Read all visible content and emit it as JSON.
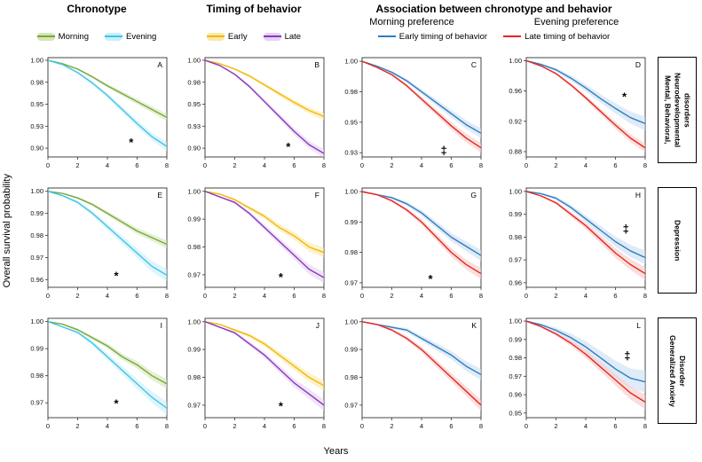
{
  "figure": {
    "y_axis_label": "Overall survival probability",
    "x_axis_label": "Years"
  },
  "headers": {
    "chronotype": "Chronotype",
    "timing": "Timing of behavior",
    "association": "Association between chronotype  and behavior",
    "morning_pref": "Morning preference",
    "evening_pref": "Evening preference"
  },
  "legends": {
    "chronotype": [
      {
        "label": "Morning",
        "color": "#78a73e",
        "fill": "#d4e6b5"
      },
      {
        "label": "Evening",
        "color": "#3cc6e8",
        "fill": "#c9eef8"
      }
    ],
    "timing": [
      {
        "label": "Early",
        "color": "#f2b705",
        "fill": "#fbe9a8"
      },
      {
        "label": "Late",
        "color": "#8a36c1",
        "fill": "#e4d2f2"
      }
    ],
    "association": [
      {
        "label": "Early timing of behavior",
        "color": "#2d7dc3",
        "fill": ""
      },
      {
        "label": "Late timing of behavior",
        "color": "#e8251f",
        "fill": ""
      }
    ]
  },
  "row_labels": [
    "Mental, Behavioral, Neurodevelopmental disorders",
    "Depression",
    "Generalized Anxiety Disorder"
  ],
  "chart_data": {
    "type": "line",
    "description": "Kaplan-Meier overall survival probability curves with shaded confidence bands, 12 panels (A-L)",
    "x_label": "Years",
    "y_label": "Overall survival probability",
    "x": [
      0,
      1,
      2,
      3,
      4,
      5,
      6,
      7,
      8
    ],
    "x_ticks": [
      0,
      2,
      4,
      6,
      8
    ],
    "panels": [
      {
        "letter": "A",
        "row": "Mental, Behavioral, Neurodevelopmental disorders",
        "column": "Chronotype",
        "significance": "*",
        "sig_pos": {
          "x": 5.6,
          "y": 0.906
        },
        "ylim": [
          0.89,
          1.003
        ],
        "y_ticks": [
          {
            "pos": 1.0,
            "label": "1.00"
          },
          {
            "pos": 0.975,
            "label": "0.98"
          },
          {
            "pos": 0.95,
            "label": "0.95"
          },
          {
            "pos": 0.925,
            "label": "0.93"
          },
          {
            "pos": 0.9,
            "label": "0.90"
          }
        ],
        "series": [
          {
            "name": "Morning",
            "color": "#78a73e",
            "fill": "#d4e6b5",
            "band": 0.004,
            "values": [
              1.0,
              0.996,
              0.99,
              0.981,
              0.971,
              0.962,
              0.953,
              0.944,
              0.935
            ]
          },
          {
            "name": "Evening",
            "color": "#3cc6e8",
            "fill": "#c9eef8",
            "band": 0.005,
            "values": [
              1.0,
              0.995,
              0.986,
              0.974,
              0.96,
              0.944,
              0.928,
              0.913,
              0.902
            ]
          }
        ]
      },
      {
        "letter": "B",
        "row": "Mental, Behavioral, Neurodevelopmental disorders",
        "column": "Timing of behavior",
        "significance": "*",
        "sig_pos": {
          "x": 5.6,
          "y": 0.901
        },
        "ylim": [
          0.89,
          1.003
        ],
        "y_ticks": [
          {
            "pos": 1.0,
            "label": "1.00"
          },
          {
            "pos": 0.975,
            "label": "0.98"
          },
          {
            "pos": 0.95,
            "label": "0.95"
          },
          {
            "pos": 0.925,
            "label": "0.93"
          },
          {
            "pos": 0.9,
            "label": "0.90"
          }
        ],
        "series": [
          {
            "name": "Early",
            "color": "#f2b705",
            "fill": "#fbe9a8",
            "band": 0.004,
            "values": [
              1.0,
              0.996,
              0.99,
              0.982,
              0.972,
              0.962,
              0.952,
              0.943,
              0.936
            ]
          },
          {
            "name": "Late",
            "color": "#8a36c1",
            "fill": "#e4d2f2",
            "band": 0.005,
            "values": [
              1.0,
              0.994,
              0.984,
              0.97,
              0.953,
              0.936,
              0.919,
              0.904,
              0.894
            ]
          }
        ]
      },
      {
        "letter": "C",
        "row": "Mental, Behavioral, Neurodevelopmental disorders",
        "column": "Morning preference",
        "significance": "‡",
        "sig_pos": {
          "x": 5.5,
          "y": 0.9265
        },
        "ylim": [
          0.9215,
          1.003
        ],
        "y_ticks": [
          {
            "pos": 1.0,
            "label": "1.00"
          },
          {
            "pos": 0.975,
            "label": "0.98"
          },
          {
            "pos": 0.95,
            "label": "0.95"
          },
          {
            "pos": 0.925,
            "label": "0.93"
          }
        ],
        "series": [
          {
            "name": "Early timing of behavior",
            "color": "#2d7dc3",
            "fill": "#c9ddf2",
            "band": 0.004,
            "values": [
              1.0,
              0.996,
              0.991,
              0.984,
              0.975,
              0.966,
              0.957,
              0.948,
              0.941
            ]
          },
          {
            "name": "Late timing of behavior",
            "color": "#e8251f",
            "fill": "#f6c8c6",
            "band": 0.004,
            "values": [
              1.0,
              0.995,
              0.989,
              0.98,
              0.969,
              0.958,
              0.947,
              0.937,
              0.929
            ]
          }
        ]
      },
      {
        "letter": "D",
        "row": "Mental, Behavioral, Neurodevelopmental disorders",
        "column": "Evening preference",
        "significance": "*",
        "sig_pos": {
          "x": 6.6,
          "y": 0.952
        },
        "ylim": [
          0.873,
          1.004
        ],
        "y_ticks": [
          {
            "pos": 1.0,
            "label": "1.00"
          },
          {
            "pos": 0.96,
            "label": "0.96"
          },
          {
            "pos": 0.92,
            "label": "0.92"
          },
          {
            "pos": 0.88,
            "label": "0.88"
          }
        ],
        "series": [
          {
            "name": "Early timing of behavior",
            "color": "#2d7dc3",
            "fill": "#c9ddf2",
            "band": 0.009,
            "values": [
              1.0,
              0.995,
              0.988,
              0.977,
              0.964,
              0.95,
              0.937,
              0.925,
              0.917
            ]
          },
          {
            "name": "Late timing of behavior",
            "color": "#e8251f",
            "fill": "#f6c8c6",
            "band": 0.006,
            "values": [
              1.0,
              0.993,
              0.983,
              0.968,
              0.951,
              0.933,
              0.915,
              0.898,
              0.885
            ]
          }
        ]
      },
      {
        "letter": "E",
        "row": "Depression",
        "column": "Chronotype",
        "significance": "*",
        "sig_pos": {
          "x": 4.6,
          "y": 0.9615
        },
        "ylim": [
          0.9565,
          1.0015
        ],
        "y_ticks": [
          {
            "pos": 1.0,
            "label": "1.00"
          },
          {
            "pos": 0.99,
            "label": "0.99"
          },
          {
            "pos": 0.98,
            "label": "0.98"
          },
          {
            "pos": 0.97,
            "label": "0.97"
          },
          {
            "pos": 0.96,
            "label": "0.96"
          }
        ],
        "series": [
          {
            "name": "Morning",
            "color": "#78a73e",
            "fill": "#d4e6b5",
            "band": 0.0018,
            "values": [
              1.0,
              0.999,
              0.997,
              0.994,
              0.99,
              0.986,
              0.982,
              0.979,
              0.976
            ]
          },
          {
            "name": "Evening",
            "color": "#3cc6e8",
            "fill": "#c9eef8",
            "band": 0.0028,
            "values": [
              1.0,
              0.998,
              0.995,
              0.99,
              0.984,
              0.978,
              0.972,
              0.966,
              0.962
            ]
          }
        ]
      },
      {
        "letter": "F",
        "row": "Depression",
        "column": "Timing of behavior",
        "significance": "*",
        "sig_pos": {
          "x": 5.1,
          "y": 0.969
        },
        "ylim": [
          0.9655,
          1.0012
        ],
        "y_ticks": [
          {
            "pos": 1.0,
            "label": "1.00"
          },
          {
            "pos": 0.99,
            "label": "0.99"
          },
          {
            "pos": 0.98,
            "label": "0.98"
          },
          {
            "pos": 0.97,
            "label": "0.97"
          }
        ],
        "series": [
          {
            "name": "Early",
            "color": "#f2b705",
            "fill": "#fbe9a8",
            "band": 0.0018,
            "values": [
              1.0,
              0.999,
              0.997,
              0.994,
              0.991,
              0.987,
              0.984,
              0.98,
              0.978
            ]
          },
          {
            "name": "Late",
            "color": "#8a36c1",
            "fill": "#e4d2f2",
            "band": 0.002,
            "values": [
              1.0,
              0.998,
              0.996,
              0.992,
              0.987,
              0.982,
              0.977,
              0.972,
              0.969
            ]
          }
        ]
      },
      {
        "letter": "G",
        "row": "Depression",
        "column": "Morning preference",
        "significance": "*",
        "sig_pos": {
          "x": 4.6,
          "y": 0.9712
        },
        "ylim": [
          0.9685,
          1.0012
        ],
        "y_ticks": [
          {
            "pos": 1.0,
            "label": "1.00"
          },
          {
            "pos": 0.99,
            "label": "0.99"
          },
          {
            "pos": 0.98,
            "label": "0.98"
          },
          {
            "pos": 0.97,
            "label": "0.97"
          }
        ],
        "series": [
          {
            "name": "Early timing of behavior",
            "color": "#2d7dc3",
            "fill": "#c9ddf2",
            "band": 0.0018,
            "values": [
              1.0,
              0.999,
              0.998,
              0.996,
              0.993,
              0.989,
              0.985,
              0.982,
              0.979
            ]
          },
          {
            "name": "Late timing of behavior",
            "color": "#e8251f",
            "fill": "#f6c8c6",
            "band": 0.0018,
            "values": [
              1.0,
              0.999,
              0.997,
              0.994,
              0.99,
              0.985,
              0.98,
              0.976,
              0.973
            ]
          }
        ]
      },
      {
        "letter": "H",
        "row": "Depression",
        "column": "Evening preference",
        "significance": "‡",
        "sig_pos": {
          "x": 6.7,
          "y": 0.9835
        },
        "ylim": [
          0.958,
          1.0015
        ],
        "y_ticks": [
          {
            "pos": 1.0,
            "label": "1.00"
          },
          {
            "pos": 0.99,
            "label": "0.99"
          },
          {
            "pos": 0.98,
            "label": "0.98"
          },
          {
            "pos": 0.97,
            "label": "0.97"
          },
          {
            "pos": 0.96,
            "label": "0.96"
          }
        ],
        "series": [
          {
            "name": "Early timing of behavior",
            "color": "#2d7dc3",
            "fill": "#c9ddf2",
            "band": 0.003,
            "values": [
              1.0,
              0.999,
              0.997,
              0.993,
              0.988,
              0.983,
              0.978,
              0.974,
              0.971
            ]
          },
          {
            "name": "Late timing of behavior",
            "color": "#e8251f",
            "fill": "#f6c8c6",
            "band": 0.0028,
            "values": [
              1.0,
              0.998,
              0.995,
              0.99,
              0.985,
              0.979,
              0.973,
              0.968,
              0.964
            ]
          }
        ]
      },
      {
        "letter": "I",
        "row": "Generalized Anxiety Disorder",
        "column": "Chronotype",
        "significance": "*",
        "sig_pos": {
          "x": 4.6,
          "y": 0.9695
        },
        "ylim": [
          0.9645,
          1.0012
        ],
        "y_ticks": [
          {
            "pos": 1.0,
            "label": "1.00"
          },
          {
            "pos": 0.99,
            "label": "0.99"
          },
          {
            "pos": 0.98,
            "label": "0.98"
          },
          {
            "pos": 0.97,
            "label": "0.97"
          }
        ],
        "series": [
          {
            "name": "Morning",
            "color": "#78a73e",
            "fill": "#d4e6b5",
            "band": 0.0018,
            "values": [
              1.0,
              0.999,
              0.997,
              0.994,
              0.991,
              0.987,
              0.984,
              0.98,
              0.977
            ]
          },
          {
            "name": "Evening",
            "color": "#3cc6e8",
            "fill": "#c9eef8",
            "band": 0.0024,
            "values": [
              1.0,
              0.998,
              0.996,
              0.992,
              0.987,
              0.982,
              0.977,
              0.972,
              0.968
            ]
          }
        ]
      },
      {
        "letter": "J",
        "row": "Generalized Anxiety Disorder",
        "column": "Timing of behavior",
        "significance": "*",
        "sig_pos": {
          "x": 5.1,
          "y": 0.9695
        },
        "ylim": [
          0.9655,
          1.0012
        ],
        "y_ticks": [
          {
            "pos": 1.0,
            "label": "1.00"
          },
          {
            "pos": 0.99,
            "label": "0.99"
          },
          {
            "pos": 0.98,
            "label": "0.98"
          },
          {
            "pos": 0.97,
            "label": "0.97"
          }
        ],
        "series": [
          {
            "name": "Early",
            "color": "#f2b705",
            "fill": "#fbe9a8",
            "band": 0.0018,
            "values": [
              1.0,
              0.999,
              0.997,
              0.995,
              0.992,
              0.988,
              0.984,
              0.98,
              0.977
            ]
          },
          {
            "name": "Late",
            "color": "#8a36c1",
            "fill": "#e4d2f2",
            "band": 0.002,
            "values": [
              1.0,
              0.998,
              0.996,
              0.992,
              0.988,
              0.983,
              0.978,
              0.974,
              0.97
            ]
          }
        ]
      },
      {
        "letter": "K",
        "row": "Generalized Anxiety Disorder",
        "column": "Morning preference",
        "significance": "",
        "sig_pos": null,
        "ylim": [
          0.9655,
          1.0012
        ],
        "y_ticks": [
          {
            "pos": 1.0,
            "label": "1.00"
          },
          {
            "pos": 0.99,
            "label": "0.99"
          },
          {
            "pos": 0.98,
            "label": "0.98"
          },
          {
            "pos": 0.97,
            "label": "0.97"
          }
        ],
        "series": [
          {
            "name": "Early timing of behavior",
            "color": "#2d7dc3",
            "fill": "#c9ddf2",
            "band": 0.002,
            "values": [
              1.0,
              0.999,
              0.998,
              0.997,
              0.994,
              0.991,
              0.988,
              0.984,
              0.981
            ]
          },
          {
            "name": "Late timing of behavior",
            "color": "#e8251f",
            "fill": "#f6c8c6",
            "band": 0.002,
            "values": [
              1.0,
              0.999,
              0.997,
              0.994,
              0.99,
              0.985,
              0.98,
              0.975,
              0.97
            ]
          }
        ]
      },
      {
        "letter": "L",
        "row": "Generalized Anxiety Disorder",
        "column": "Evening preference",
        "significance": "‡",
        "sig_pos": {
          "x": 6.8,
          "y": 0.981
        },
        "ylim": [
          0.9475,
          1.0015
        ],
        "y_ticks": [
          {
            "pos": 1.0,
            "label": "1.00"
          },
          {
            "pos": 0.99,
            "label": "0.99"
          },
          {
            "pos": 0.98,
            "label": "0.98"
          },
          {
            "pos": 0.97,
            "label": "0.97"
          },
          {
            "pos": 0.96,
            "label": "0.96"
          },
          {
            "pos": 0.95,
            "label": "0.95"
          }
        ],
        "series": [
          {
            "name": "Early timing of behavior",
            "color": "#2d7dc3",
            "fill": "#c9ddf2",
            "band": 0.006,
            "values": [
              1.0,
              0.998,
              0.995,
              0.991,
              0.986,
              0.98,
              0.974,
              0.969,
              0.967
            ]
          },
          {
            "name": "Late timing of behavior",
            "color": "#e8251f",
            "fill": "#f6c8c6",
            "band": 0.004,
            "values": [
              1.0,
              0.997,
              0.993,
              0.988,
              0.982,
              0.975,
              0.968,
              0.961,
              0.956
            ]
          }
        ]
      }
    ]
  }
}
